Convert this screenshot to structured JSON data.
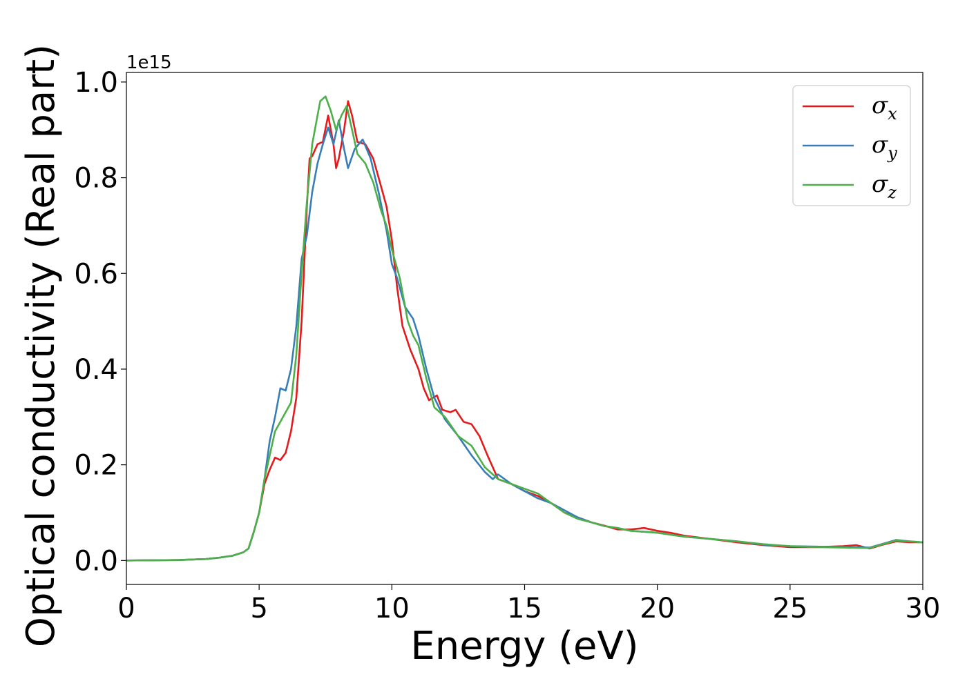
{
  "chart_data": {
    "type": "line",
    "xlabel": "Energy (eV)",
    "ylabel": "Optical conductivity (Real part)",
    "y_offset_label": "1e15",
    "xlim": [
      0,
      30
    ],
    "ylim": [
      -0.05,
      1.02
    ],
    "x_ticks": [
      0,
      5,
      10,
      15,
      20,
      25,
      30
    ],
    "x_tick_labels": [
      "0",
      "5",
      "10",
      "15",
      "20",
      "25",
      "30"
    ],
    "y_ticks": [
      0.0,
      0.2,
      0.4,
      0.6,
      0.8,
      1.0
    ],
    "y_tick_labels": [
      "0.0",
      "0.2",
      "0.4",
      "0.6",
      "0.8",
      "1.0"
    ],
    "grid": false,
    "legend_position": "top-right",
    "series": [
      {
        "name": "σx",
        "symbol": "σ",
        "subscript": "x",
        "color": "#e41a1c",
        "points": [
          [
            0,
            0
          ],
          [
            2,
            0.001
          ],
          [
            3,
            0.003
          ],
          [
            3.5,
            0.006
          ],
          [
            4,
            0.01
          ],
          [
            4.4,
            0.017
          ],
          [
            4.6,
            0.025
          ],
          [
            4.8,
            0.06
          ],
          [
            5.0,
            0.1
          ],
          [
            5.2,
            0.16
          ],
          [
            5.4,
            0.19
          ],
          [
            5.6,
            0.215
          ],
          [
            5.8,
            0.21
          ],
          [
            6.0,
            0.225
          ],
          [
            6.2,
            0.27
          ],
          [
            6.4,
            0.34
          ],
          [
            6.6,
            0.5
          ],
          [
            6.8,
            0.74
          ],
          [
            6.9,
            0.84
          ],
          [
            7.0,
            0.845
          ],
          [
            7.2,
            0.87
          ],
          [
            7.4,
            0.875
          ],
          [
            7.6,
            0.93
          ],
          [
            7.8,
            0.87
          ],
          [
            7.9,
            0.82
          ],
          [
            8.0,
            0.84
          ],
          [
            8.2,
            0.9
          ],
          [
            8.35,
            0.96
          ],
          [
            8.5,
            0.93
          ],
          [
            8.7,
            0.875
          ],
          [
            9.0,
            0.87
          ],
          [
            9.3,
            0.84
          ],
          [
            9.6,
            0.78
          ],
          [
            9.8,
            0.74
          ],
          [
            10.0,
            0.67
          ],
          [
            10.2,
            0.57
          ],
          [
            10.4,
            0.49
          ],
          [
            10.7,
            0.44
          ],
          [
            11.0,
            0.4
          ],
          [
            11.2,
            0.36
          ],
          [
            11.4,
            0.335
          ],
          [
            11.7,
            0.345
          ],
          [
            11.9,
            0.315
          ],
          [
            12.2,
            0.31
          ],
          [
            12.4,
            0.315
          ],
          [
            12.7,
            0.29
          ],
          [
            13.0,
            0.285
          ],
          [
            13.3,
            0.26
          ],
          [
            13.6,
            0.22
          ],
          [
            14.0,
            0.17
          ],
          [
            14.5,
            0.16
          ],
          [
            15.0,
            0.145
          ],
          [
            15.5,
            0.135
          ],
          [
            16.0,
            0.12
          ],
          [
            16.5,
            0.1
          ],
          [
            17.0,
            0.09
          ],
          [
            17.5,
            0.08
          ],
          [
            18.0,
            0.073
          ],
          [
            18.5,
            0.065
          ],
          [
            19.0,
            0.065
          ],
          [
            19.5,
            0.068
          ],
          [
            20.0,
            0.062
          ],
          [
            20.5,
            0.058
          ],
          [
            21.0,
            0.052
          ],
          [
            22.0,
            0.045
          ],
          [
            23.0,
            0.038
          ],
          [
            24.0,
            0.032
          ],
          [
            25.0,
            0.028
          ],
          [
            26.0,
            0.028
          ],
          [
            27.0,
            0.03
          ],
          [
            27.5,
            0.032
          ],
          [
            28.0,
            0.025
          ],
          [
            28.5,
            0.033
          ],
          [
            29.0,
            0.04
          ],
          [
            29.5,
            0.038
          ],
          [
            30.0,
            0.038
          ]
        ]
      },
      {
        "name": "σy",
        "symbol": "σ",
        "subscript": "y",
        "color": "#377eb8",
        "points": [
          [
            0,
            0
          ],
          [
            2,
            0.001
          ],
          [
            3,
            0.003
          ],
          [
            3.5,
            0.006
          ],
          [
            4,
            0.01
          ],
          [
            4.4,
            0.017
          ],
          [
            4.6,
            0.025
          ],
          [
            4.8,
            0.06
          ],
          [
            5.0,
            0.1
          ],
          [
            5.2,
            0.17
          ],
          [
            5.4,
            0.25
          ],
          [
            5.6,
            0.3
          ],
          [
            5.8,
            0.36
          ],
          [
            6.0,
            0.355
          ],
          [
            6.2,
            0.4
          ],
          [
            6.4,
            0.49
          ],
          [
            6.6,
            0.63
          ],
          [
            6.8,
            0.68
          ],
          [
            7.0,
            0.77
          ],
          [
            7.2,
            0.83
          ],
          [
            7.4,
            0.87
          ],
          [
            7.6,
            0.905
          ],
          [
            7.8,
            0.87
          ],
          [
            8.0,
            0.92
          ],
          [
            8.2,
            0.86
          ],
          [
            8.35,
            0.82
          ],
          [
            8.6,
            0.86
          ],
          [
            8.9,
            0.88
          ],
          [
            9.2,
            0.84
          ],
          [
            9.5,
            0.77
          ],
          [
            9.8,
            0.69
          ],
          [
            10.0,
            0.62
          ],
          [
            10.2,
            0.59
          ],
          [
            10.5,
            0.53
          ],
          [
            10.8,
            0.505
          ],
          [
            11.0,
            0.47
          ],
          [
            11.3,
            0.4
          ],
          [
            11.6,
            0.34
          ],
          [
            12.0,
            0.295
          ],
          [
            12.5,
            0.26
          ],
          [
            13.0,
            0.22
          ],
          [
            13.5,
            0.185
          ],
          [
            13.8,
            0.17
          ],
          [
            14.0,
            0.18
          ],
          [
            14.5,
            0.16
          ],
          [
            15.0,
            0.145
          ],
          [
            15.5,
            0.13
          ],
          [
            16.0,
            0.12
          ],
          [
            16.5,
            0.105
          ],
          [
            17.0,
            0.09
          ],
          [
            17.5,
            0.08
          ],
          [
            18.0,
            0.072
          ],
          [
            18.5,
            0.068
          ],
          [
            19.0,
            0.062
          ],
          [
            20.0,
            0.058
          ],
          [
            21.0,
            0.05
          ],
          [
            22.0,
            0.045
          ],
          [
            23.0,
            0.04
          ],
          [
            24.0,
            0.033
          ],
          [
            25.0,
            0.03
          ],
          [
            26.0,
            0.029
          ],
          [
            27.0,
            0.028
          ],
          [
            28.0,
            0.027
          ],
          [
            28.5,
            0.035
          ],
          [
            29.0,
            0.043
          ],
          [
            29.5,
            0.04
          ],
          [
            30.0,
            0.038
          ]
        ]
      },
      {
        "name": "σz",
        "symbol": "σ",
        "subscript": "z",
        "color": "#4daf4a",
        "points": [
          [
            0,
            0
          ],
          [
            2,
            0.001
          ],
          [
            3,
            0.003
          ],
          [
            3.5,
            0.006
          ],
          [
            4,
            0.01
          ],
          [
            4.4,
            0.017
          ],
          [
            4.6,
            0.025
          ],
          [
            4.8,
            0.06
          ],
          [
            5.0,
            0.1
          ],
          [
            5.2,
            0.17
          ],
          [
            5.4,
            0.22
          ],
          [
            5.6,
            0.27
          ],
          [
            5.8,
            0.29
          ],
          [
            6.0,
            0.31
          ],
          [
            6.2,
            0.33
          ],
          [
            6.4,
            0.43
          ],
          [
            6.6,
            0.6
          ],
          [
            6.8,
            0.75
          ],
          [
            7.0,
            0.87
          ],
          [
            7.2,
            0.93
          ],
          [
            7.3,
            0.96
          ],
          [
            7.5,
            0.97
          ],
          [
            7.7,
            0.94
          ],
          [
            7.9,
            0.9
          ],
          [
            8.1,
            0.93
          ],
          [
            8.3,
            0.95
          ],
          [
            8.5,
            0.9
          ],
          [
            8.7,
            0.85
          ],
          [
            9.0,
            0.83
          ],
          [
            9.3,
            0.79
          ],
          [
            9.6,
            0.73
          ],
          [
            9.8,
            0.7
          ],
          [
            10.0,
            0.65
          ],
          [
            10.3,
            0.59
          ],
          [
            10.6,
            0.5
          ],
          [
            10.8,
            0.47
          ],
          [
            11.0,
            0.45
          ],
          [
            11.3,
            0.38
          ],
          [
            11.6,
            0.32
          ],
          [
            12.0,
            0.3
          ],
          [
            12.5,
            0.26
          ],
          [
            13.0,
            0.24
          ],
          [
            13.5,
            0.195
          ],
          [
            14.0,
            0.17
          ],
          [
            14.5,
            0.16
          ],
          [
            15.0,
            0.15
          ],
          [
            15.5,
            0.14
          ],
          [
            16.0,
            0.12
          ],
          [
            16.5,
            0.1
          ],
          [
            17.0,
            0.087
          ],
          [
            17.5,
            0.08
          ],
          [
            18.0,
            0.072
          ],
          [
            18.5,
            0.068
          ],
          [
            19.0,
            0.062
          ],
          [
            20.0,
            0.058
          ],
          [
            21.0,
            0.05
          ],
          [
            22.0,
            0.045
          ],
          [
            23.0,
            0.04
          ],
          [
            24.0,
            0.034
          ],
          [
            25.0,
            0.03
          ],
          [
            26.0,
            0.028
          ],
          [
            27.0,
            0.027
          ],
          [
            28.0,
            0.026
          ],
          [
            28.5,
            0.034
          ],
          [
            29.0,
            0.042
          ],
          [
            29.5,
            0.04
          ],
          [
            30.0,
            0.038
          ]
        ]
      }
    ]
  }
}
